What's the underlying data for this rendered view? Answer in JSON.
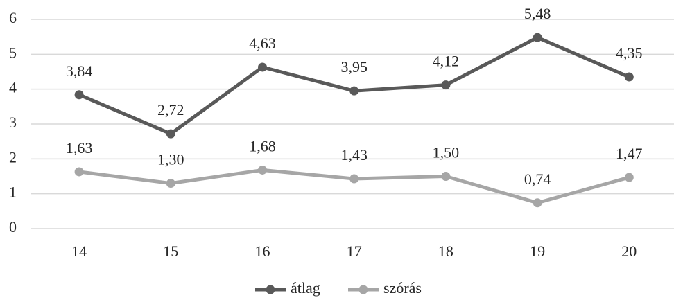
{
  "chart_data": {
    "type": "line",
    "categories": [
      "14",
      "15",
      "16",
      "17",
      "18",
      "19",
      "20"
    ],
    "series": [
      {
        "name": "átlag",
        "color": "#595959",
        "values": [
          3.84,
          2.72,
          4.63,
          3.95,
          4.12,
          5.48,
          4.35
        ],
        "value_labels": [
          "3,84",
          "2,72",
          "4,63",
          "3,95",
          "4,12",
          "5,48",
          "4,35"
        ]
      },
      {
        "name": "szórás",
        "color": "#a6a6a6",
        "values": [
          1.63,
          1.3,
          1.68,
          1.43,
          1.5,
          0.74,
          1.47
        ],
        "value_labels": [
          "1,63",
          "1,30",
          "1,68",
          "1,43",
          "1,50",
          "0,74",
          "1,47"
        ]
      }
    ],
    "ylim": [
      0,
      6
    ],
    "yticks": [
      0,
      1,
      2,
      3,
      4,
      5,
      6
    ],
    "grid": true,
    "legend": "bottom"
  }
}
